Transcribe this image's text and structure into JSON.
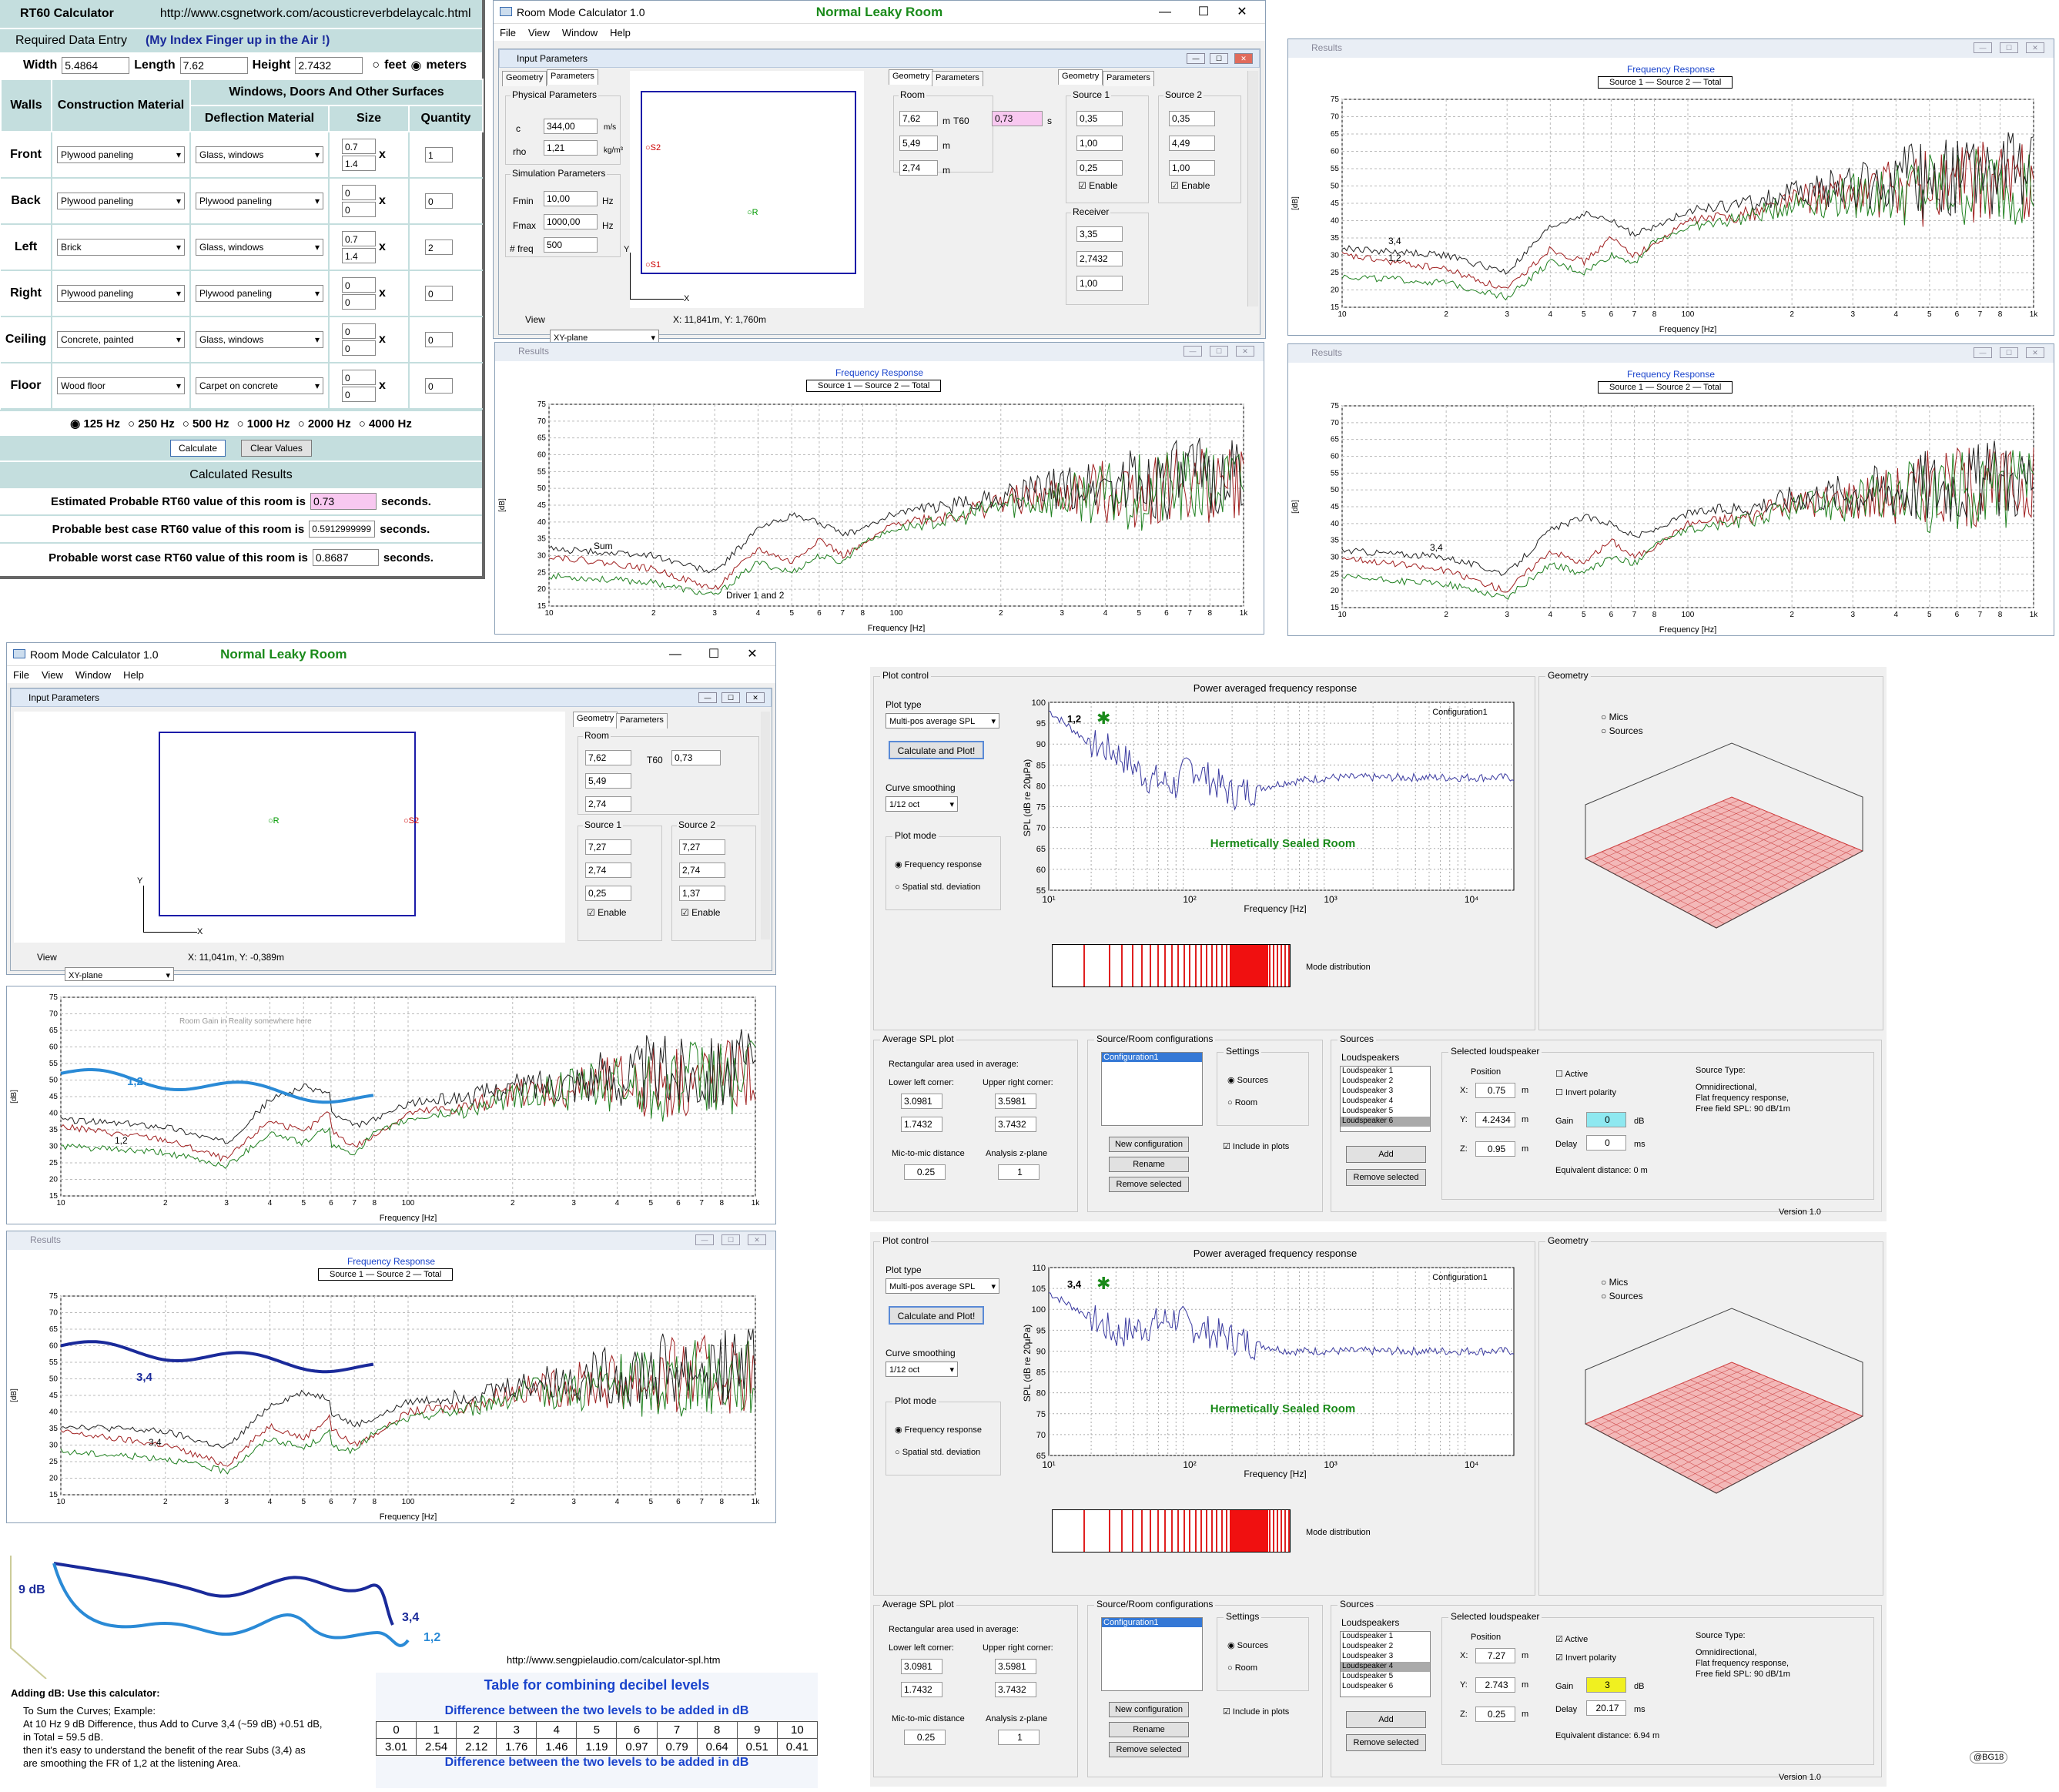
{
  "rt60": {
    "title": "RT60 Calculator",
    "url": "http://www.csgnetwork.com/acousticreverbdelaycalc.html",
    "required": "Required Data Entry",
    "finger": "(My Index Finger up in the Air !)",
    "width_label": "Width",
    "width": "5.4864",
    "length_label": "Length",
    "length": "7.62",
    "height_label": "Height",
    "height": "2.7432",
    "feet": "feet",
    "meters": "meters",
    "col_walls": "Walls",
    "col_construction": "Construction Material",
    "col_windows": "Windows, Doors And Other Surfaces",
    "col_deflection": "Deflection Material",
    "col_size": "Size",
    "col_qty": "Quantity",
    "rows": [
      {
        "wall": "Front",
        "mat": "Plywood paneling",
        "defl": "Glass, windows",
        "w": "0.7",
        "h": "1.4",
        "q": "1"
      },
      {
        "wall": "Back",
        "mat": "Plywood paneling",
        "defl": "Plywood paneling",
        "w": "0",
        "h": "0",
        "q": "0"
      },
      {
        "wall": "Left",
        "mat": "Brick",
        "defl": "Glass, windows",
        "w": "0.7",
        "h": "1.4",
        "q": "2"
      },
      {
        "wall": "Right",
        "mat": "Plywood paneling",
        "defl": "Plywood paneling",
        "w": "0",
        "h": "0",
        "q": "0"
      },
      {
        "wall": "Ceiling",
        "mat": "Concrete, painted",
        "defl": "Glass, windows",
        "w": "0",
        "h": "0",
        "q": "0"
      },
      {
        "wall": "Floor",
        "mat": "Wood floor",
        "defl": "Carpet on concrete",
        "w": "0",
        "h": "0",
        "q": "0"
      }
    ],
    "x": "x",
    "freqs": [
      "125 Hz",
      "250 Hz",
      "500 Hz",
      "1000 Hz",
      "2000 Hz",
      "4000 Hz"
    ],
    "calculate": "Calculate",
    "clear": "Clear Values",
    "calc_results": "Calculated Results",
    "est_label": "Estimated Probable RT60 value of this room is",
    "est": "0.73",
    "best_label": "Probable best case RT60 value of this room is",
    "best": "0.5912999999",
    "worst_label": "Probable worst case RT60 value of this room is",
    "worst": "0.8687",
    "seconds": "seconds."
  },
  "rmc": {
    "title": "Room Mode Calculator 1.0",
    "room": "Normal Leaky Room",
    "menu": [
      "File",
      "View",
      "Window",
      "Help"
    ],
    "input_params": "Input Parameters",
    "tab_geometry": "Geometry",
    "tab_parameters": "Parameters",
    "physical": "Physical Parameters",
    "c_label": "c",
    "c": "344,00",
    "c_unit": "m/s",
    "rho_label": "rho",
    "rho": "1,21",
    "rho_unit": "kg/m³",
    "sim": "Simulation Parameters",
    "fmin_label": "Fmin",
    "fmin": "10,00",
    "fmax_label": "Fmax",
    "fmax": "1000,00",
    "hz": "Hz",
    "nfreq_label": "# freq",
    "nfreq": "500",
    "room_label": "Room",
    "rx": "7,62",
    "ry": "5,49",
    "rz": "2,74",
    "t60_label": "T60",
    "t60": "0,73",
    "s": "s",
    "m": "m",
    "src1": "Source 1",
    "src2": "Source 2",
    "s1x": "0,35",
    "s1y": "1,00",
    "s1z": "0,25",
    "s2x": "0,35",
    "s2y": "4,49",
    "s2z": "1,00",
    "enable": "Enable",
    "receiver": "Receiver",
    "recx": "3,35",
    "recy": "2,7432",
    "recz": "1,00",
    "view_label": "View",
    "view": "XY-plane",
    "coords1": "X: 11,841m, Y: 1,760m",
    "coords2": "X: 11,041m, Y: -0,389m",
    "b_s1x": "7,27",
    "b_s1y": "2,74",
    "b_s1z": "0,25",
    "b_s2x": "7,27",
    "b_s2y": "2,74",
    "b_s2z": "1,37",
    "s1": "S1",
    "s2": "S2",
    "r": "R",
    "ax_x": "X",
    "ax_y": "Y"
  },
  "results": {
    "title": "Results",
    "chart_title": "Frequency Response",
    "legend": "Source 1 — Source 2 — Total",
    "xlabel": "Frequency [Hz]",
    "ylabel": "[dB]",
    "ann_34": "3,4",
    "ann_12": "1,2",
    "ann_sum": "Sum",
    "ann_driver": "Driver 1 and 2",
    "ann_roomgain": "Room Gain in Reality somewhere here"
  },
  "chart_data": [
    {
      "type": "line",
      "title": "Frequency Response",
      "xlabel": "Frequency [Hz]",
      "ylabel": "[dB]",
      "xscale": "log",
      "xlim": [
        10,
        1000
      ],
      "ylim": [
        15,
        75
      ],
      "yticks": [
        15,
        20,
        25,
        30,
        35,
        40,
        45,
        50,
        55,
        60,
        65,
        70,
        75
      ],
      "xtick_labels": [
        "10",
        "2",
        "3",
        "4",
        "5",
        "6",
        "7",
        "8",
        "100",
        "2",
        "3",
        "4",
        "5",
        "6",
        "7",
        "8",
        "1k"
      ],
      "series": [
        {
          "name": "Source 1",
          "x": [
            10,
            20,
            30,
            40,
            50,
            60,
            70,
            80,
            100,
            150,
            200,
            300,
            500,
            1000
          ],
          "y": [
            30,
            26,
            20,
            32,
            28,
            35,
            30,
            33,
            40,
            42,
            46,
            48,
            50,
            52
          ]
        },
        {
          "name": "Source 2",
          "x": [
            10,
            20,
            30,
            40,
            50,
            60,
            70,
            80,
            100,
            150,
            200,
            300,
            500,
            1000
          ],
          "y": [
            24,
            22,
            18,
            28,
            25,
            30,
            28,
            34,
            38,
            41,
            45,
            47,
            49,
            51
          ]
        },
        {
          "name": "Total",
          "x": [
            10,
            20,
            30,
            40,
            50,
            60,
            70,
            80,
            100,
            150,
            200,
            300,
            500,
            1000
          ],
          "y": [
            32,
            30,
            25,
            38,
            42,
            40,
            36,
            38,
            43,
            45,
            48,
            50,
            52,
            54
          ]
        }
      ]
    },
    {
      "type": "line",
      "title": "Power averaged frequency response",
      "xlabel": "Frequency [Hz]",
      "ylabel": "SPL (dB re 20μPa)",
      "xscale": "log",
      "ylim": [
        55,
        100
      ],
      "series": [
        {
          "name": "Configuration1",
          "x": [
            10,
            20,
            30,
            50,
            80,
            100,
            200,
            500,
            1000,
            5000,
            20000
          ],
          "y": [
            98,
            90,
            88,
            82,
            80,
            85,
            78,
            81,
            82,
            82,
            82
          ]
        }
      ]
    },
    {
      "type": "line",
      "title": "Power averaged frequency response",
      "xlabel": "Frequency [Hz]",
      "ylabel": "SPL (dB re 20μPa)",
      "xscale": "log",
      "ylim": [
        65,
        110
      ],
      "series": [
        {
          "name": "Configuration1",
          "x": [
            10,
            20,
            30,
            50,
            80,
            100,
            200,
            500,
            1000,
            5000,
            20000
          ],
          "y": [
            104,
            98,
            94,
            96,
            98,
            96,
            93,
            90,
            90,
            90,
            90
          ]
        }
      ]
    }
  ],
  "mats": {
    "plot_control": "Plot control",
    "plot_type": "Plot type",
    "plot_type_val": "Multi-pos average SPL",
    "calc_plot": "Calculate and Plot!",
    "curve_smoothing": "Curve smoothing",
    "smoothing_val": "1/12 oct",
    "plot_mode": "Plot mode",
    "freq_resp": "Frequency response",
    "spatial": "Spatial std. deviation",
    "chart_title": "Power averaged frequency response",
    "config": "Configuration1",
    "sealed": "Hermetically Sealed Room",
    "xlabel": "Frequency [Hz]",
    "ylabel": "SPL (dB re 20μPa)",
    "mode_dist": "Mode distribution",
    "geometry": "Geometry",
    "mics": "Mics",
    "sources": "Sources",
    "avg_spl": "Average SPL plot",
    "rect_area": "Rectangular area used in average:",
    "ll": "Lower left corner:",
    "ur": "Upper right corner:",
    "llx": "3.0981",
    "lly": "1.7432",
    "urx": "3.5981",
    "ury": "3.7432",
    "mic_dist": "Mic-to-mic distance",
    "mic_dist_v": "0.25",
    "zplane": "Analysis z-plane",
    "zplane_v": "1",
    "src_room": "Source/Room configurations",
    "settings": "Settings",
    "set_sources": "Sources",
    "set_room": "Room",
    "new_cfg": "New configuration",
    "rename": "Rename",
    "remove": "Remove selected",
    "include": "Include in plots",
    "sources_t": "Sources",
    "loudspeakers": "Loudspeakers",
    "ls": [
      "Loudspeaker 1",
      "Loudspeaker 2",
      "Loudspeaker 3",
      "Loudspeaker 4",
      "Loudspeaker 5",
      "Loudspeaker 6"
    ],
    "add": "Add",
    "sel_ls": "Selected loudspeaker",
    "position": "Position",
    "active": "Active",
    "invert": "Invert polarity",
    "gain": "Gain",
    "delay": "Delay",
    "db": "dB",
    "ms": "ms",
    "src_type": "Source Type:",
    "omni": "Omnidirectional,",
    "flat": "Flat frequency response,",
    "free": "Free field SPL: 90 dB/1m",
    "a_px": "0.75",
    "a_py": "4.2434",
    "a_pz": "0.95",
    "a_gain": "0",
    "a_delay": "0",
    "a_eq": "Equivalent distance: 0 m",
    "b_px": "7.27",
    "b_py": "2.743",
    "b_pz": "0.25",
    "b_gain": "3",
    "b_delay": "20.17",
    "b_eq": "Equivalent distance: 6.94 m",
    "version": "Version 1.0",
    "label_12": "1,2",
    "label_34": "3,4",
    "x": "X:",
    "y": "Y:",
    "z": "Z:",
    "mm": "m"
  },
  "notes": {
    "nine_db": "9 dB",
    "c34": "3,4",
    "c12": "1,2",
    "adding": "Adding dB:  Use this calculator:",
    "line1": "To Sum the Curves; Example:",
    "line2": "At 10 Hz 9 dB Difference, thus Add to Curve 3,4 (~59 dB) +0.51 dB,",
    "line3": "in Total = 59.5 dB.",
    "line4": "then it's easy to understand the benefit of the rear Subs (3,4) as",
    "line5": "are smoothing the FR of  1,2 at the listening Area.",
    "url": "http://www.sengpielaudio.com/calculator-spl.htm",
    "table_title": "Table for combining decibel levels",
    "diff_title": "Difference between the two levels to be added in dB",
    "diffs": [
      "0",
      "1",
      "2",
      "3",
      "4",
      "5",
      "6",
      "7",
      "8",
      "9",
      "10"
    ],
    "adds": [
      "3.01",
      "2.54",
      "2.12",
      "1.76",
      "1.46",
      "1.19",
      "0.97",
      "0.79",
      "0.64",
      "0.51",
      "0.41"
    ],
    "credit": "@BG18"
  }
}
